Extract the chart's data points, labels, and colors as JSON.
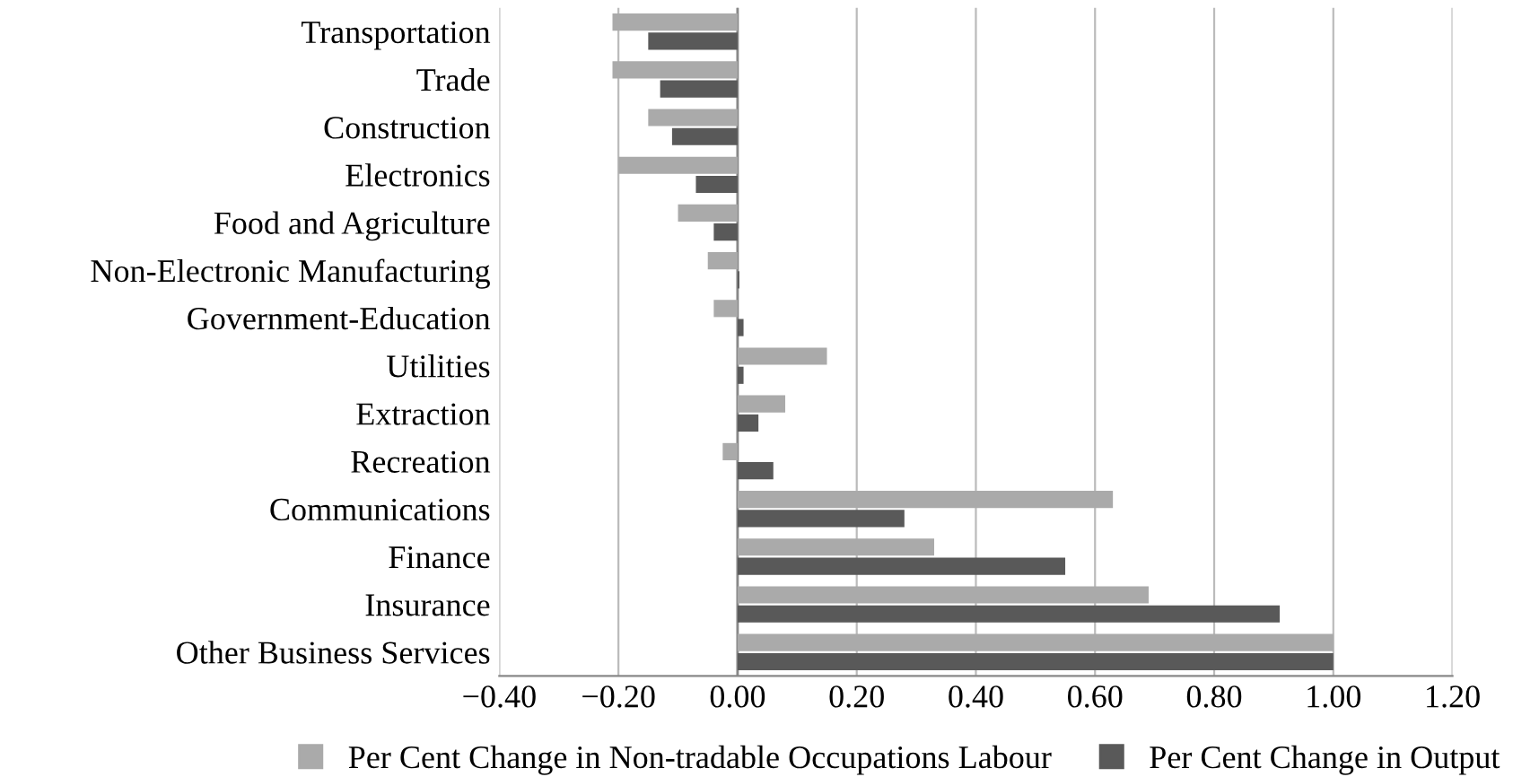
{
  "chart_data": {
    "type": "bar",
    "orientation": "horizontal",
    "categories": [
      "Transportation",
      "Trade",
      "Construction",
      "Electronics",
      "Food and Agriculture",
      "Non-Electronic Manufacturing",
      "Government-Education",
      "Utilities",
      "Extraction",
      "Recreation",
      "Communications",
      "Finance",
      "Insurance",
      "Other Business Services"
    ],
    "series": [
      {
        "name": "Per Cent Change in Non-tradable Occupations Labour",
        "color": "#aaaaaa",
        "values": [
          -0.21,
          -0.21,
          -0.15,
          -0.2,
          -0.1,
          -0.05,
          -0.04,
          0.15,
          0.08,
          -0.025,
          0.63,
          0.33,
          0.69,
          1.0
        ]
      },
      {
        "name": "Per Cent Change in Output",
        "color": "#595959",
        "values": [
          -0.15,
          -0.13,
          -0.11,
          -0.07,
          -0.04,
          0.003,
          0.01,
          0.01,
          0.035,
          0.06,
          0.28,
          0.55,
          0.91,
          1.0
        ]
      }
    ],
    "xlim": [
      -0.4,
      1.2
    ],
    "xticks": [
      {
        "value": -0.4,
        "label": "−0.40"
      },
      {
        "value": -0.2,
        "label": "−0.20"
      },
      {
        "value": 0,
        "label": "0.00"
      },
      {
        "value": 0.2,
        "label": "0.20"
      },
      {
        "value": 0.4,
        "label": "0.40"
      },
      {
        "value": 0.6,
        "label": "0.60"
      },
      {
        "value": 0.8,
        "label": "0.80"
      },
      {
        "value": 1.0,
        "label": "1.00"
      },
      {
        "value": 1.2,
        "label": "1.20"
      }
    ],
    "grid": "x",
    "legend": "bottom"
  }
}
